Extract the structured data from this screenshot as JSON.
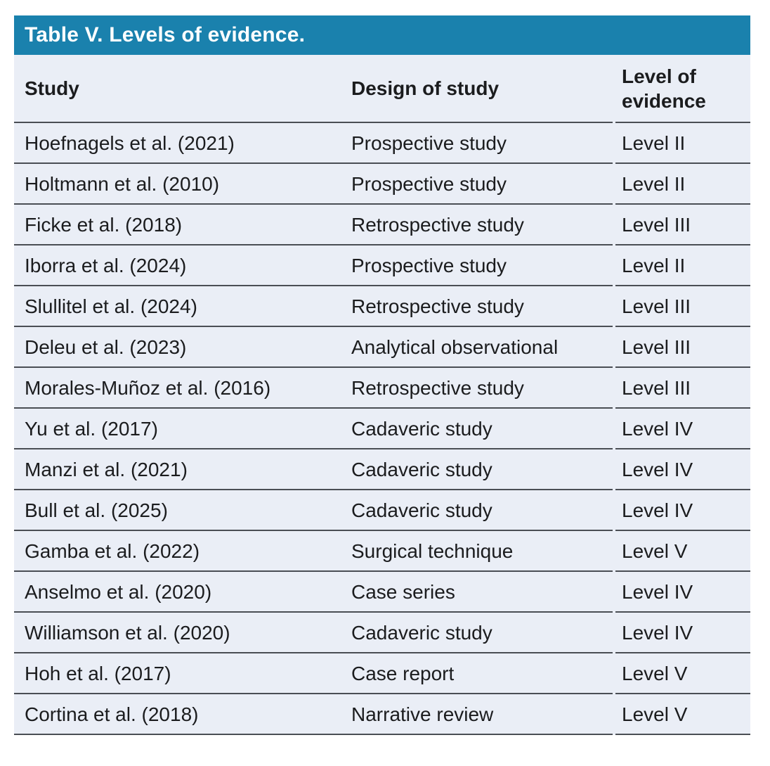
{
  "table": {
    "title": "Table V. Levels of evidence.",
    "columns": [
      "Study",
      "Design of study",
      "Level of evidence"
    ],
    "rows": [
      {
        "study": "Hoefnagels et al. (2021)",
        "design": "Prospective study",
        "level": "Level II"
      },
      {
        "study": "Holtmann et al. (2010)",
        "design": "Prospective study",
        "level": "Level II"
      },
      {
        "study": "Ficke et al. (2018)",
        "design": "Retrospective study",
        "level": "Level III"
      },
      {
        "study": "Iborra et al. (2024)",
        "design": "Prospective study",
        "level": "Level II"
      },
      {
        "study": "Slullitel et al. (2024)",
        "design": "Retrospective study",
        "level": "Level III"
      },
      {
        "study": "Deleu et al. (2023)",
        "design": "Analytical observational",
        "level": "Level III"
      },
      {
        "study": "Morales-Muñoz et al. (2016)",
        "design": "Retrospective study",
        "level": "Level III"
      },
      {
        "study": "Yu et al. (2017)",
        "design": "Cadaveric study",
        "level": "Level IV"
      },
      {
        "study": "Manzi et al. (2021)",
        "design": "Cadaveric study",
        "level": "Level IV"
      },
      {
        "study": "Bull et al. (2025)",
        "design": "Cadaveric study",
        "level": "Level IV"
      },
      {
        "study": "Gamba et al. (2022)",
        "design": "Surgical technique",
        "level": "Level V"
      },
      {
        "study": "Anselmo et al. (2020)",
        "design": "Case series",
        "level": "Level IV"
      },
      {
        "study": "Williamson et al. (2020)",
        "design": "Cadaveric study",
        "level": "Level IV"
      },
      {
        "study": "Hoh et al. (2017)",
        "design": "Case report",
        "level": "Level V"
      },
      {
        "study": "Cortina et al. (2018)",
        "design": "Narrative review",
        "level": "Level V"
      }
    ]
  },
  "colors": {
    "accent": "#1a81ad",
    "row_bg": "#eaeef6",
    "border": "#4a4e54",
    "text": "#1b1c1e"
  }
}
